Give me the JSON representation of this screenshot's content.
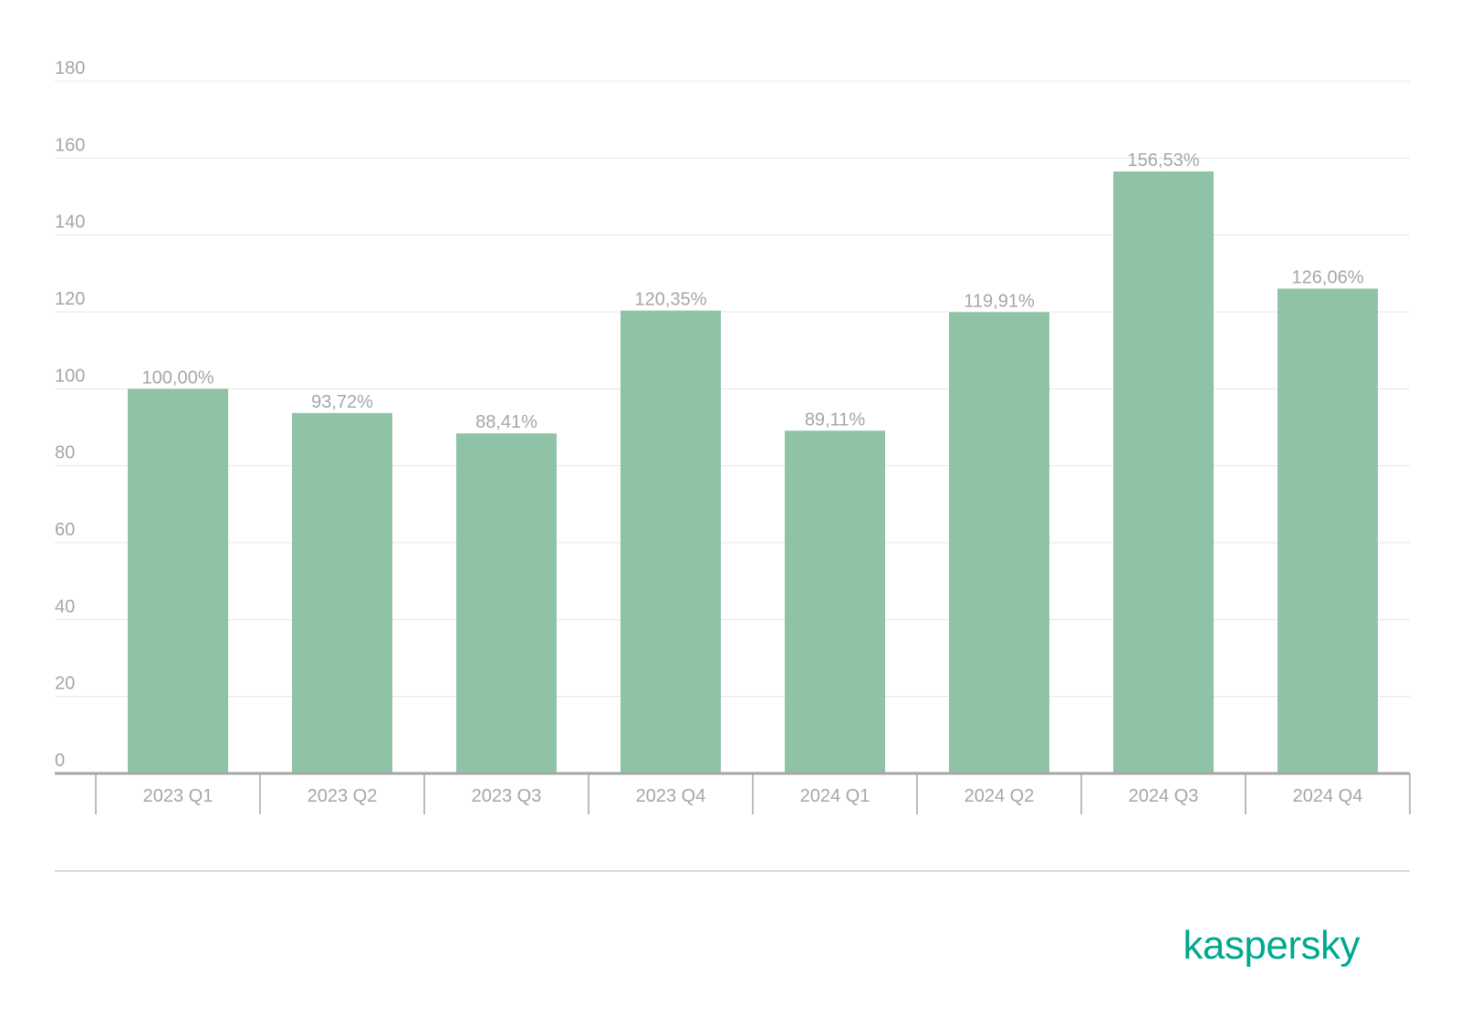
{
  "chart_data": {
    "type": "bar",
    "categories": [
      "2023 Q1",
      "2023 Q2",
      "2023 Q3",
      "2023 Q4",
      "2024 Q1",
      "2024 Q2",
      "2024 Q3",
      "2024 Q4"
    ],
    "values": [
      100.0,
      93.72,
      88.41,
      120.35,
      89.11,
      119.91,
      156.53,
      126.06
    ],
    "data_labels": [
      "100,00%",
      "93,72%",
      "88,41%",
      "120,35%",
      "89,11%",
      "119,91%",
      "156,53%",
      "126,06%"
    ],
    "title": "",
    "xlabel": "",
    "ylabel": "",
    "ylim": [
      0,
      180
    ],
    "yticks": [
      0,
      20,
      40,
      60,
      80,
      100,
      120,
      140,
      160,
      180
    ],
    "grid": true,
    "bar_color": "#8fc3a6"
  },
  "branding": {
    "logo_text": "kaspersky",
    "logo_color": "#00a88e"
  }
}
